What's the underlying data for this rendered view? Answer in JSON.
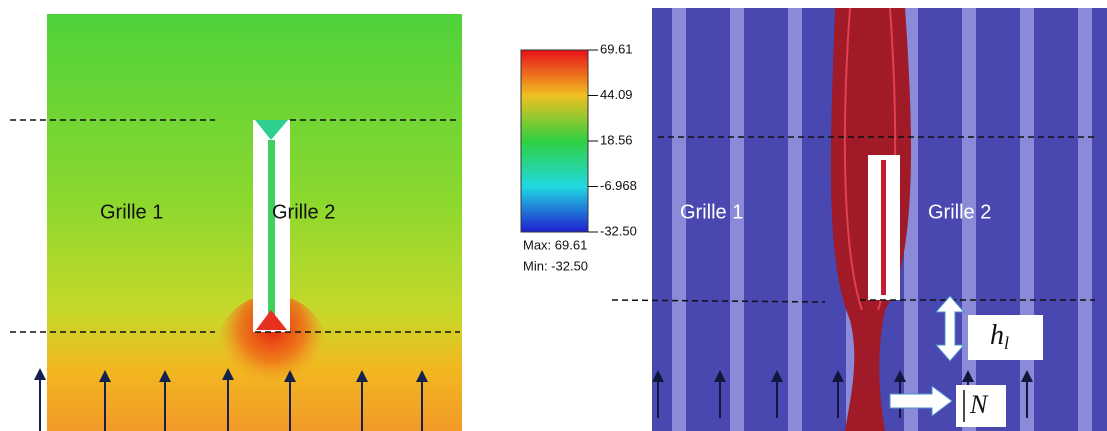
{
  "left_panel": {
    "labels": [
      "Grille 1",
      "Grille 2"
    ]
  },
  "colorbar": {
    "ticks": [
      "69.61",
      "44.09",
      "18.56",
      "-6.968",
      "-32.50"
    ],
    "max_label": "Max: 69.61",
    "min_label": "Min: -32.50"
  },
  "right_panel": {
    "labels": [
      "Grille 1",
      "Grille 2"
    ],
    "height_symbol": {
      "base": "h",
      "sub": "l"
    },
    "n_symbol": "N"
  }
}
